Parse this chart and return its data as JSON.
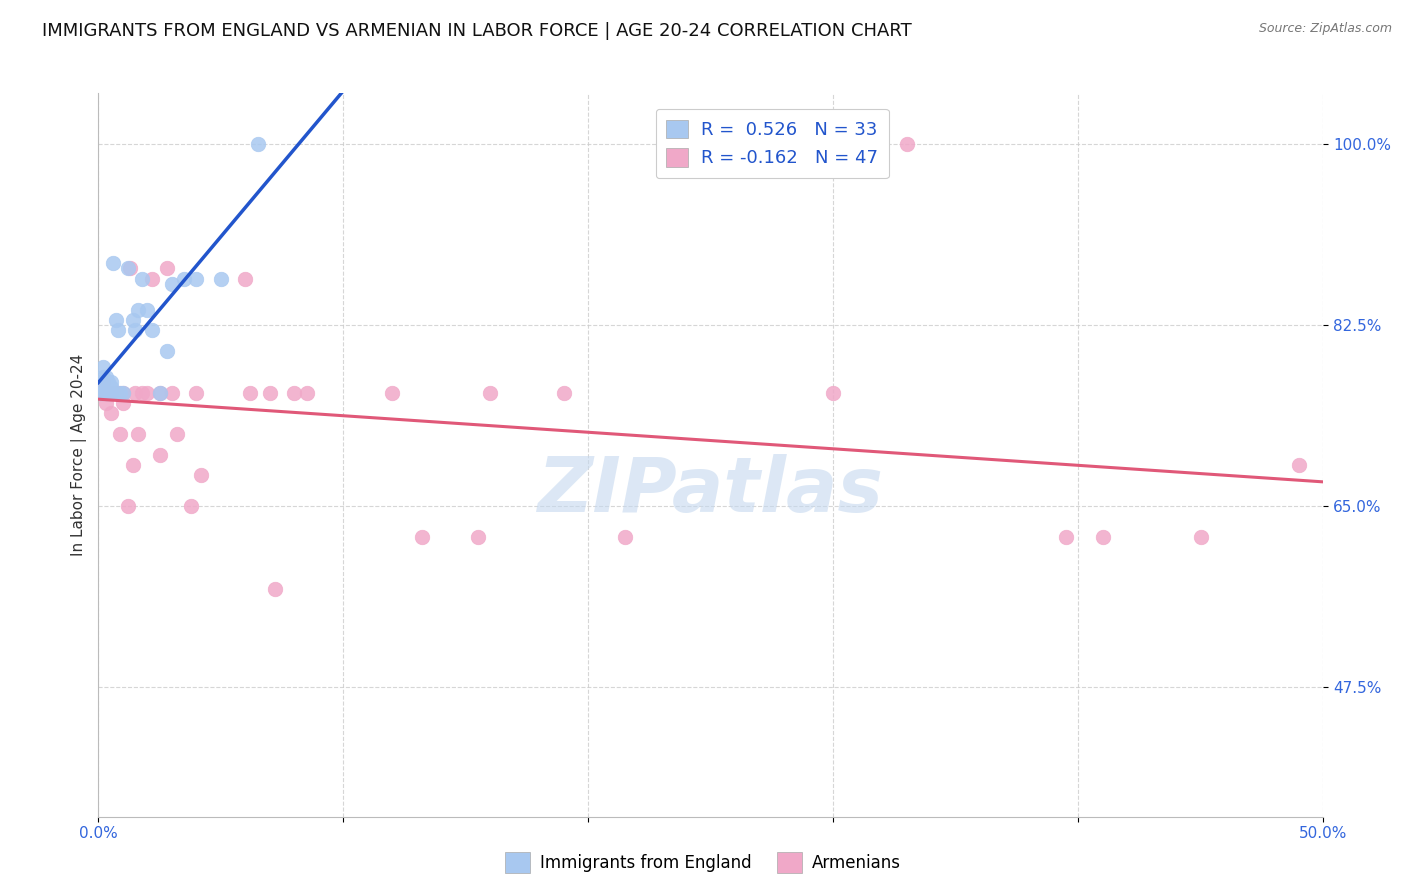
{
  "title": "IMMIGRANTS FROM ENGLAND VS ARMENIAN IN LABOR FORCE | AGE 20-24 CORRELATION CHART",
  "source": "Source: ZipAtlas.com",
  "ylabel": "In Labor Force | Age 20-24",
  "xlim": [
    0.0,
    0.5
  ],
  "ylim": [
    0.35,
    1.05
  ],
  "xticks": [
    0.0,
    0.1,
    0.2,
    0.3,
    0.4,
    0.5
  ],
  "xticklabels": [
    "0.0%",
    "",
    "",
    "",
    "",
    "50.0%"
  ],
  "yticks": [
    0.475,
    0.65,
    0.825,
    1.0
  ],
  "yticklabels": [
    "47.5%",
    "65.0%",
    "82.5%",
    "100.0%"
  ],
  "england_color": "#a8c8f0",
  "armenian_color": "#f0a8c8",
  "england_edge_color": "#a8c8f0",
  "armenian_edge_color": "#f0a8c8",
  "england_line_color": "#2255cc",
  "armenian_line_color": "#e05878",
  "england_x": [
    0.001,
    0.001,
    0.002,
    0.002,
    0.002,
    0.003,
    0.003,
    0.003,
    0.004,
    0.004,
    0.004,
    0.005,
    0.005,
    0.005,
    0.006,
    0.007,
    0.008,
    0.009,
    0.01,
    0.012,
    0.014,
    0.015,
    0.016,
    0.018,
    0.02,
    0.022,
    0.025,
    0.028,
    0.03,
    0.035,
    0.04,
    0.05,
    0.065
  ],
  "england_y": [
    0.76,
    0.77,
    0.76,
    0.775,
    0.785,
    0.76,
    0.77,
    0.775,
    0.76,
    0.765,
    0.77,
    0.76,
    0.765,
    0.77,
    0.885,
    0.83,
    0.82,
    0.76,
    0.76,
    0.88,
    0.83,
    0.82,
    0.84,
    0.87,
    0.84,
    0.82,
    0.76,
    0.8,
    0.865,
    0.87,
    0.87,
    0.87,
    1.0
  ],
  "armenian_x": [
    0.001,
    0.002,
    0.003,
    0.003,
    0.004,
    0.005,
    0.005,
    0.006,
    0.007,
    0.008,
    0.009,
    0.01,
    0.01,
    0.012,
    0.013,
    0.014,
    0.015,
    0.016,
    0.018,
    0.02,
    0.022,
    0.025,
    0.025,
    0.028,
    0.03,
    0.032,
    0.038,
    0.04,
    0.042,
    0.06,
    0.062,
    0.07,
    0.072,
    0.08,
    0.085,
    0.12,
    0.132,
    0.155,
    0.16,
    0.19,
    0.215,
    0.3,
    0.33,
    0.395,
    0.41,
    0.45,
    0.49
  ],
  "armenian_y": [
    0.76,
    0.77,
    0.76,
    0.75,
    0.76,
    0.76,
    0.74,
    0.76,
    0.76,
    0.76,
    0.72,
    0.76,
    0.75,
    0.65,
    0.88,
    0.69,
    0.76,
    0.72,
    0.76,
    0.76,
    0.87,
    0.7,
    0.76,
    0.88,
    0.76,
    0.72,
    0.65,
    0.76,
    0.68,
    0.87,
    0.76,
    0.76,
    0.57,
    0.76,
    0.76,
    0.76,
    0.62,
    0.62,
    0.76,
    0.76,
    0.62,
    0.76,
    1.0,
    0.62,
    0.62,
    0.62,
    0.69
  ],
  "watermark_text": "ZIPatlas",
  "watermark_color": "#c5d8ef",
  "background_color": "#ffffff",
  "grid_color": "#cccccc",
  "title_fontsize": 13,
  "axis_label_fontsize": 11,
  "tick_fontsize": 11,
  "marker_size": 110,
  "line_width": 2.2
}
